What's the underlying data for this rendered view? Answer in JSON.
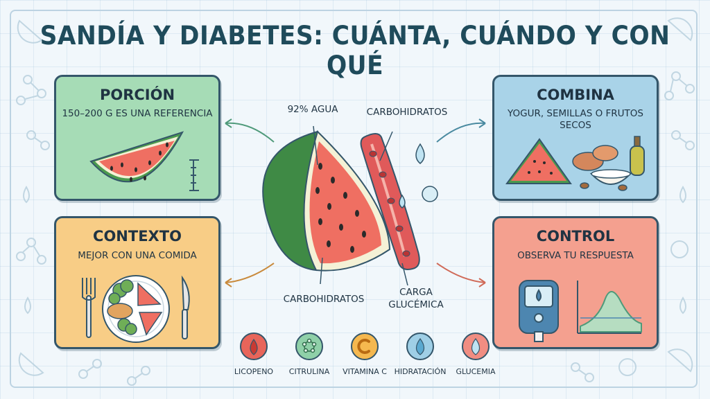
{
  "title": "SANDÍA Y DIABETES: CUÁNTA, CUÁNDO Y CON QUÉ",
  "cards": {
    "porcion": {
      "title": "PORCIÓN",
      "subtitle": "150–200 G ES UNA REFERENCIA"
    },
    "combina": {
      "title": "COMBINA",
      "subtitle_line1": "YOGUR, SEMILLAS O FRUTOS",
      "subtitle_line2": "SECOS"
    },
    "contexto": {
      "title": "CONTEXTO",
      "subtitle": "MEJOR CON UNA COMIDA"
    },
    "control": {
      "title": "CONTROL",
      "subtitle": "OBSERVA TU RESPUESTA"
    }
  },
  "center": {
    "water_label": "92% AGUA",
    "carbs_top_label": "CARBOHIDRATOS",
    "carbs_bottom_label": "CARBOHIDRATOS",
    "glycemic_line1": "CARGA",
    "glycemic_line2": "GLUCÉMICA"
  },
  "legend": [
    {
      "label": "LICOPENO",
      "icon": "drop-icon",
      "color": "#e8655a"
    },
    {
      "label": "CITRULINA",
      "icon": "molecule-icon",
      "color": "#8fd0a8"
    },
    {
      "label": "VITAMINA C",
      "icon": "vitamin-c-icon",
      "color": "#f5b84f"
    },
    {
      "label": "HIDRATACIÓN",
      "icon": "water-drop-icon",
      "color": "#9fcfe6"
    },
    {
      "label": "GLUCEMIA",
      "icon": "glucose-drop-icon",
      "color": "#f08d82"
    }
  ],
  "colors": {
    "porcion_bg": "#a6dcb6",
    "combina_bg": "#a9d3e8",
    "contexto_bg": "#f8cd86",
    "control_bg": "#f4a08f",
    "outline": "#34566a",
    "title": "#1f4b5b"
  }
}
